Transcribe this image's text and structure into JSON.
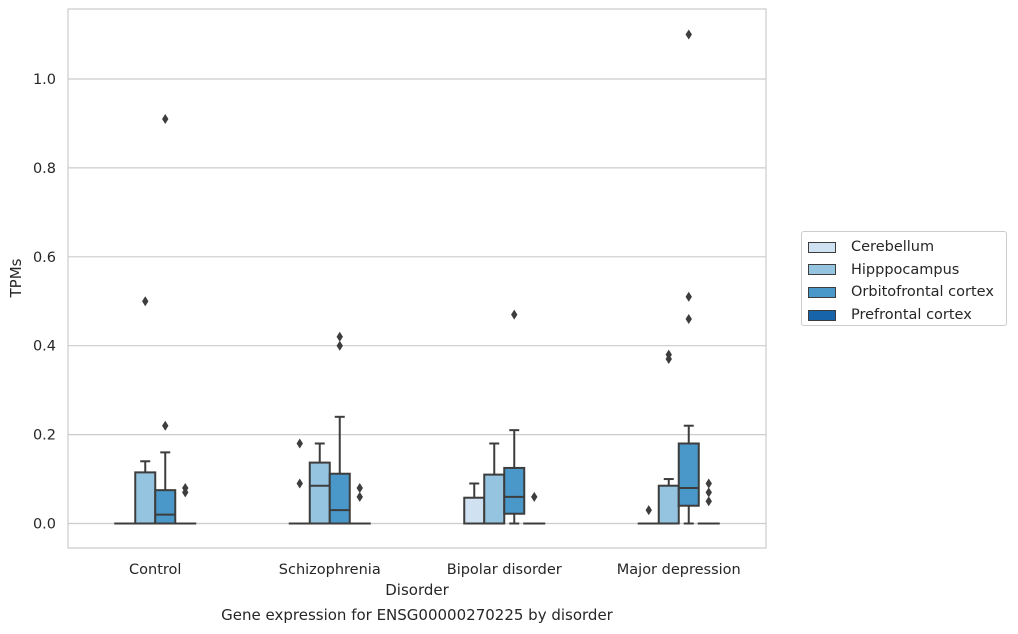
{
  "caption": "Gene expression for ENSG00000270225 by disorder",
  "chart_data": {
    "type": "box",
    "xlabel": "Disorder",
    "ylabel": "TPMs",
    "title": "",
    "categories": [
      "Control",
      "Schizophrenia",
      "Bipolar disorder",
      "Major depression"
    ],
    "ylim": [
      -0.05,
      1.16
    ],
    "yticks": [
      0.0,
      0.2,
      0.4,
      0.6,
      0.8,
      1.0
    ],
    "ytick_labels": [
      "0.0",
      "0.2",
      "0.4",
      "0.6",
      "0.8",
      "1.0"
    ],
    "grid": "horizontal",
    "legend_position": "center-right outside",
    "series": [
      {
        "name": "Cerebellum",
        "color": "#d0e1f2",
        "boxes": [
          {
            "q1": 0,
            "median": 0,
            "q3": 0,
            "whisker_low": 0,
            "whisker_high": 0,
            "outliers": []
          },
          {
            "q1": 0,
            "median": 0,
            "q3": 0,
            "whisker_low": 0,
            "whisker_high": 0,
            "outliers": [
              0.18,
              0.09
            ]
          },
          {
            "q1": 0,
            "median": 0,
            "q3": 0.058,
            "whisker_low": 0,
            "whisker_high": 0.09,
            "outliers": []
          },
          {
            "q1": 0,
            "median": 0,
            "q3": 0,
            "whisker_low": 0,
            "whisker_high": 0,
            "outliers": [
              0.03
            ]
          }
        ]
      },
      {
        "name": "Hipppocampus",
        "color": "#94c4df",
        "boxes": [
          {
            "q1": 0,
            "median": 0,
            "q3": 0.115,
            "whisker_low": 0,
            "whisker_high": 0.14,
            "outliers": [
              0.5
            ]
          },
          {
            "q1": 0,
            "median": 0.085,
            "q3": 0.137,
            "whisker_low": 0,
            "whisker_high": 0.18,
            "outliers": []
          },
          {
            "q1": 0,
            "median": 0,
            "q3": 0.11,
            "whisker_low": 0,
            "whisker_high": 0.18,
            "outliers": []
          },
          {
            "q1": 0,
            "median": 0,
            "q3": 0.085,
            "whisker_low": 0,
            "whisker_high": 0.1,
            "outliers": [
              0.38,
              0.37
            ]
          }
        ]
      },
      {
        "name": "Orbitofrontal cortex",
        "color": "#4a98c9",
        "boxes": [
          {
            "q1": 0,
            "median": 0.02,
            "q3": 0.075,
            "whisker_low": 0,
            "whisker_high": 0.16,
            "outliers": [
              0.91,
              0.22
            ]
          },
          {
            "q1": 0,
            "median": 0.03,
            "q3": 0.112,
            "whisker_low": 0,
            "whisker_high": 0.24,
            "outliers": [
              0.42,
              0.4
            ]
          },
          {
            "q1": 0.022,
            "median": 0.06,
            "q3": 0.125,
            "whisker_low": 0,
            "whisker_high": 0.21,
            "outliers": [
              0.47
            ]
          },
          {
            "q1": 0.04,
            "median": 0.08,
            "q3": 0.18,
            "whisker_low": 0,
            "whisker_high": 0.22,
            "outliers": [
              1.1,
              0.51,
              0.46
            ]
          }
        ]
      },
      {
        "name": "Prefrontal cortex",
        "color": "#1764ab",
        "boxes": [
          {
            "q1": 0,
            "median": 0,
            "q3": 0,
            "whisker_low": 0,
            "whisker_high": 0,
            "outliers": [
              0.08,
              0.07
            ]
          },
          {
            "q1": 0,
            "median": 0,
            "q3": 0,
            "whisker_low": 0,
            "whisker_high": 0,
            "outliers": [
              0.08,
              0.06
            ]
          },
          {
            "q1": 0,
            "median": 0,
            "q3": 0,
            "whisker_low": 0,
            "whisker_high": 0,
            "outliers": [
              0.06
            ]
          },
          {
            "q1": 0,
            "median": 0,
            "q3": 0,
            "whisker_low": 0,
            "whisker_high": 0,
            "outliers": [
              0.09,
              0.07,
              0.05
            ]
          }
        ]
      }
    ]
  }
}
